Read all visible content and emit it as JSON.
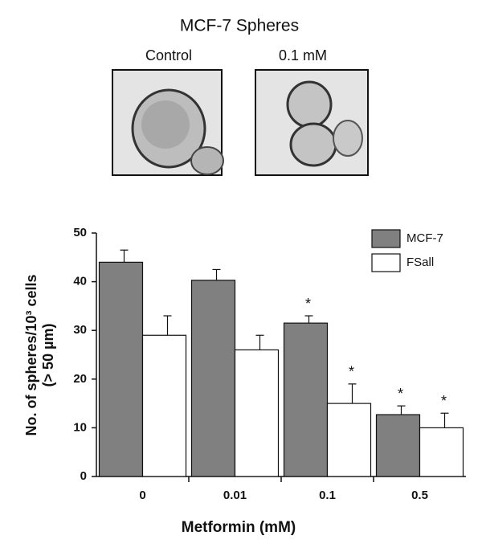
{
  "panel": {
    "title": "MCF-7 Spheres",
    "images": [
      "Control",
      "0.1 mM"
    ]
  },
  "chart_data": {
    "type": "bar",
    "xlabel": "Metformin (mM)",
    "ylabel": [
      "No. of spheres/10³ cells",
      "(> 50 µm)"
    ],
    "categories": [
      "0",
      "0.01",
      "0.1",
      "0.5"
    ],
    "series": [
      {
        "name": "MCF-7",
        "color": "#808080",
        "values": [
          44,
          40.3,
          31.5,
          12.7
        ],
        "errors": [
          2.5,
          2.2,
          1.5,
          1.8
        ],
        "significance": [
          null,
          null,
          "*",
          "*"
        ]
      },
      {
        "name": "FSall",
        "color": "#ffffff",
        "values": [
          29,
          26,
          15,
          10
        ],
        "errors": [
          4,
          3,
          4,
          3
        ],
        "significance": [
          null,
          null,
          "*",
          "*"
        ]
      }
    ],
    "ylim": [
      0,
      50
    ],
    "yticks": [
      0,
      10,
      20,
      30,
      40,
      50
    ],
    "legend": "top-right"
  }
}
